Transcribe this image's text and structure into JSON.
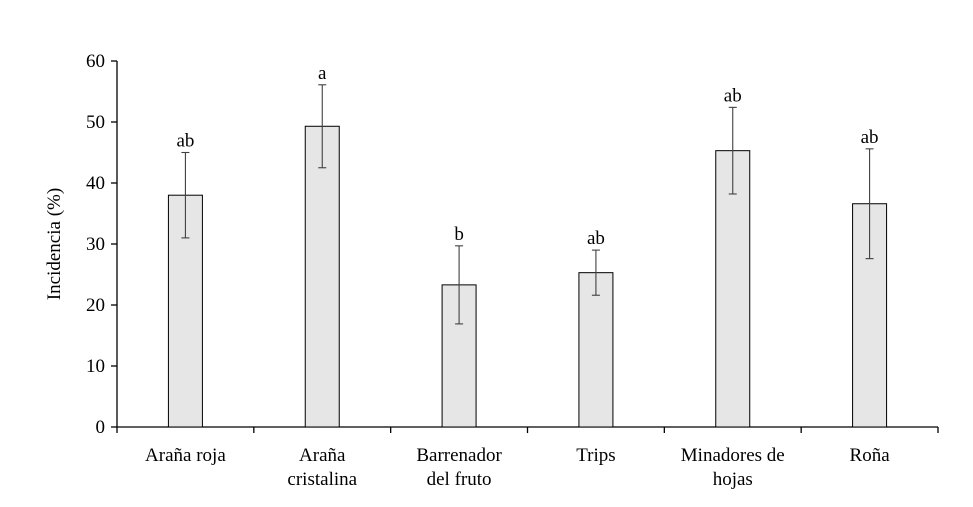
{
  "chart_data": {
    "type": "bar",
    "title": "",
    "xlabel": "",
    "ylabel": "Incidencia (%)",
    "ylim": [
      0,
      60
    ],
    "yticks": [
      0,
      10,
      20,
      30,
      40,
      50,
      60
    ],
    "grid": false,
    "categories": [
      [
        "Araña roja"
      ],
      [
        "Araña",
        "cristalina"
      ],
      [
        "Barrenador",
        "del fruto"
      ],
      [
        "Trips"
      ],
      [
        "Minadores de",
        "hojas"
      ],
      [
        "Roña"
      ]
    ],
    "values": [
      38.0,
      49.3,
      23.3,
      25.3,
      45.3,
      36.6
    ],
    "error": [
      7.0,
      6.8,
      6.4,
      3.7,
      7.1,
      9.0
    ],
    "significance": [
      "ab",
      "a",
      "b",
      "ab",
      "ab",
      "ab"
    ],
    "colors": {
      "bar_fill": "#e6e6e6",
      "bar_stroke": "#000000",
      "axis": "#000000",
      "error_bar": "#404040"
    }
  }
}
